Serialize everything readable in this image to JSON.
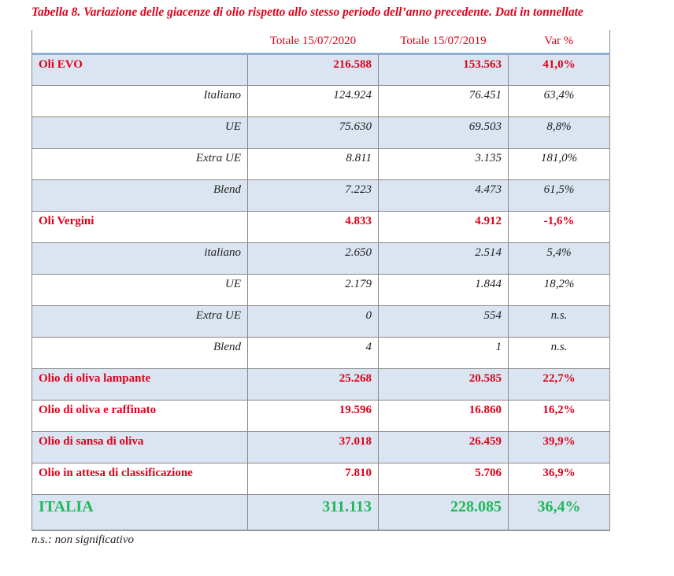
{
  "title": "Tabella 8. Variazione delle giacenze di olio rispetto allo stesso periodo dell’anno precedente. Dati in tonnellate",
  "headers": [
    "",
    "Totale 15/07/2020",
    "Totale 15/07/2019",
    "Var %"
  ],
  "rows": [
    {
      "label": "Oli EVO",
      "v2020": "216.588",
      "v2019": "153.563",
      "var": "41,0%"
    },
    {
      "label": "Italiano",
      "v2020": "124.924",
      "v2019": "76.451",
      "var": "63,4%"
    },
    {
      "label": "UE",
      "v2020": "75.630",
      "v2019": "69.503",
      "var": "8,8%"
    },
    {
      "label": "Extra UE",
      "v2020": "8.811",
      "v2019": "3.135",
      "var": "181,0%"
    },
    {
      "label": "Blend",
      "v2020": "7.223",
      "v2019": "4.473",
      "var": "61,5%"
    },
    {
      "label": "Oli Vergini",
      "v2020": "4.833",
      "v2019": "4.912",
      "var": "-1,6%"
    },
    {
      "label": "italiano",
      "v2020": "2.650",
      "v2019": "2.514",
      "var": "5,4%"
    },
    {
      "label": "UE",
      "v2020": "2.179",
      "v2019": "1.844",
      "var": "18,2%"
    },
    {
      "label": "Extra UE",
      "v2020": "0",
      "v2019": "554",
      "var": "n.s."
    },
    {
      "label": "Blend",
      "v2020": "4",
      "v2019": "1",
      "var": "n.s."
    },
    {
      "label": "Olio di oliva lampante",
      "v2020": "25.268",
      "v2019": "20.585",
      "var": "22,7%"
    },
    {
      "label": "Olio di oliva e raffinato",
      "v2020": "19.596",
      "v2019": "16.860",
      "var": "16,2%"
    },
    {
      "label": "Olio di sansa di oliva",
      "v2020": "37.018",
      "v2019": "26.459",
      "var": "39,9%"
    },
    {
      "label": "Olio in attesa di classificazione",
      "v2020": "7.810",
      "v2019": "5.706",
      "var": "36,9%"
    },
    {
      "label": "ITALIA",
      "v2020": "311.113",
      "v2019": "228.085",
      "var": "36,4%"
    }
  ],
  "footnote": "n.s.: non significativo"
}
